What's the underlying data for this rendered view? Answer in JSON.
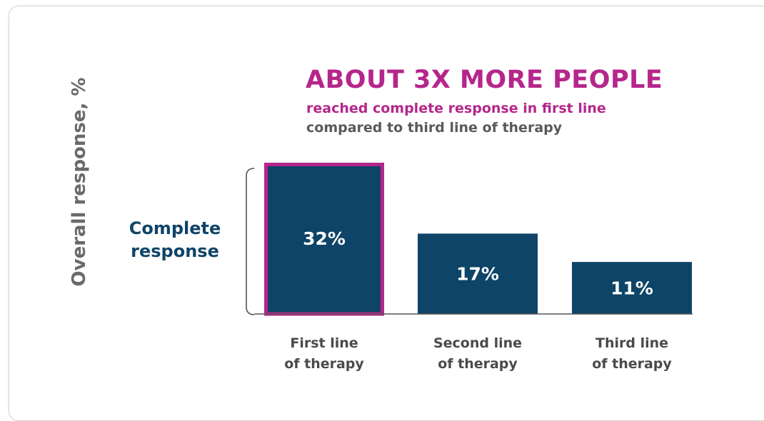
{
  "headline": "ABOUT 3X MORE PEOPLE",
  "subheadline_1": "reached complete response in first line",
  "subheadline_2": "compared to third line of therapy",
  "bracket_label": "Complete response",
  "colors": {
    "bar": "#0d4467",
    "highlight": "#b5268b",
    "axis": "#555555"
  },
  "chart_data": {
    "type": "bar",
    "title": "",
    "ylabel": "Overall response, %",
    "xlabel": "",
    "categories": [
      [
        "First line",
        "of therapy"
      ],
      [
        "Second line",
        "of therapy"
      ],
      [
        "Third line",
        "of therapy"
      ]
    ],
    "values": [
      32,
      17,
      11
    ],
    "data_labels": [
      "32%",
      "17%",
      "11%"
    ],
    "highlighted_index": 0,
    "ylim": [
      0,
      32
    ],
    "grid": false
  }
}
